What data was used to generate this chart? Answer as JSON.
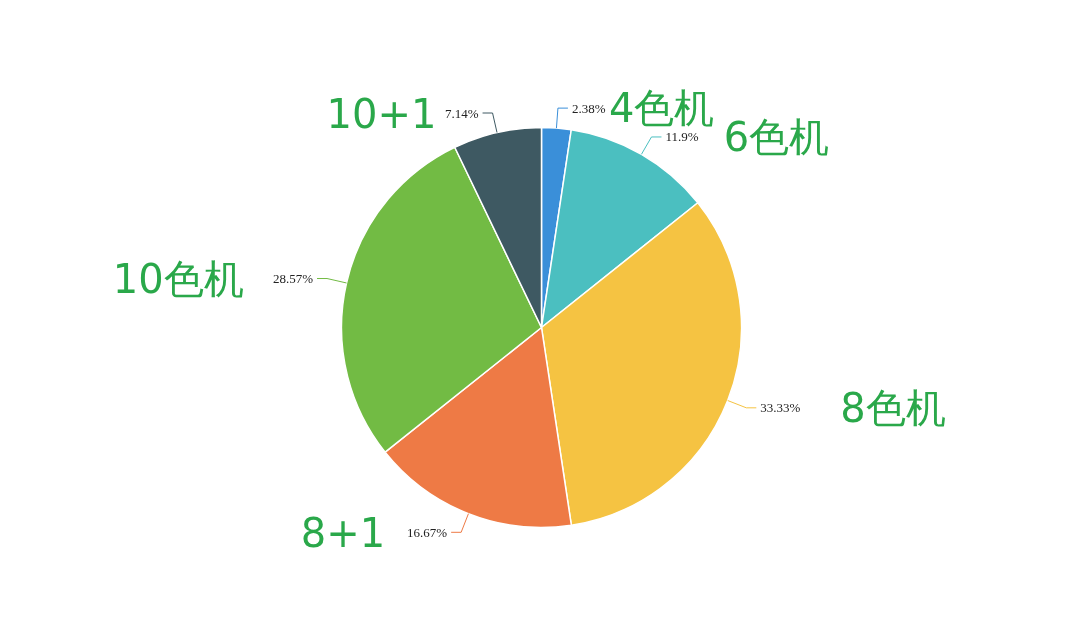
{
  "chart_data": {
    "type": "pie",
    "categories": [
      "4色机",
      "6色机",
      "8色机",
      "8+1",
      "10色机",
      "10+1"
    ],
    "values": [
      2.38,
      11.9,
      33.33,
      16.67,
      28.57,
      7.14
    ],
    "colors": [
      "#3a8fd9",
      "#4bbfc0",
      "#f5c342",
      "#ee7a45",
      "#72bb44",
      "#3e5962"
    ],
    "value_labels": [
      "2.38%",
      "11.9%",
      "33.33%",
      "16.67%",
      "28.57%",
      "7.14%"
    ]
  }
}
